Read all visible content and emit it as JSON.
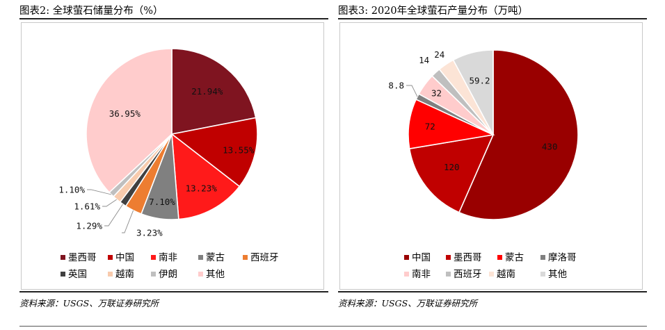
{
  "charts": {
    "left": {
      "title": "图表2:  全球萤石储量分布（%）",
      "source": "资料来源：USGS、万联证券研究所"
    },
    "right": {
      "title": "图表3:  2020年全球萤石产量分布（万吨）",
      "source": "资料来源：USGS、万联证券研究所"
    }
  },
  "chart_data": [
    {
      "type": "pie",
      "title": "图表2:  全球萤石储量分布（%）",
      "unit": "%",
      "series": [
        {
          "name": "墨西哥",
          "value": 21.94,
          "label": "21.94%",
          "color": "#7f1420"
        },
        {
          "name": "中国",
          "value": 13.55,
          "label": "13.55%",
          "color": "#c00000"
        },
        {
          "name": "南非",
          "value": 13.23,
          "label": "13.23%",
          "color": "#ff1a1a"
        },
        {
          "name": "蒙古",
          "value": 7.1,
          "label": "7.10%",
          "color": "#808080"
        },
        {
          "name": "西班牙",
          "value": 3.23,
          "label": "3.23%",
          "color": "#ed7d31"
        },
        {
          "name": "英国",
          "value": 1.29,
          "label": "1.29%",
          "color": "#404040"
        },
        {
          "name": "越南",
          "value": 1.61,
          "label": "1.61%",
          "color": "#f8cbad"
        },
        {
          "name": "伊朗",
          "value": 1.1,
          "label": "1.10%",
          "color": "#bfbfbf"
        },
        {
          "name": "其他",
          "value": 36.95,
          "label": "36.95%",
          "color": "#ffcccc"
        }
      ],
      "legend": [
        "墨西哥",
        "中国",
        "南非",
        "蒙古",
        "西班牙",
        "英国",
        "越南",
        "伊朗",
        "其他"
      ],
      "legend_position": "bottom"
    },
    {
      "type": "pie",
      "title": "图表3:  2020年全球萤石产量分布（万吨）",
      "unit": "万吨",
      "series": [
        {
          "name": "中国",
          "value": 430,
          "label": "430",
          "color": "#990000"
        },
        {
          "name": "墨西哥",
          "value": 120,
          "label": "120",
          "color": "#c00000"
        },
        {
          "name": "蒙古",
          "value": 72,
          "label": "72",
          "color": "#ff0000"
        },
        {
          "name": "摩洛哥",
          "value": 8.8,
          "label": "8.8",
          "color": "#808080"
        },
        {
          "name": "南非",
          "value": 32,
          "label": "32",
          "color": "#ffcccc"
        },
        {
          "name": "西班牙",
          "value": 14,
          "label": "14",
          "color": "#bfbfbf"
        },
        {
          "name": "越南",
          "value": 24,
          "label": "24",
          "color": "#fce4d6"
        },
        {
          "name": "其他",
          "value": 59.2,
          "label": "59.2",
          "color": "#d9d9d9"
        }
      ],
      "legend": [
        "中国",
        "墨西哥",
        "蒙古",
        "摩洛哥",
        "南非",
        "西班牙",
        "越南",
        "其他"
      ],
      "legend_position": "bottom"
    }
  ]
}
